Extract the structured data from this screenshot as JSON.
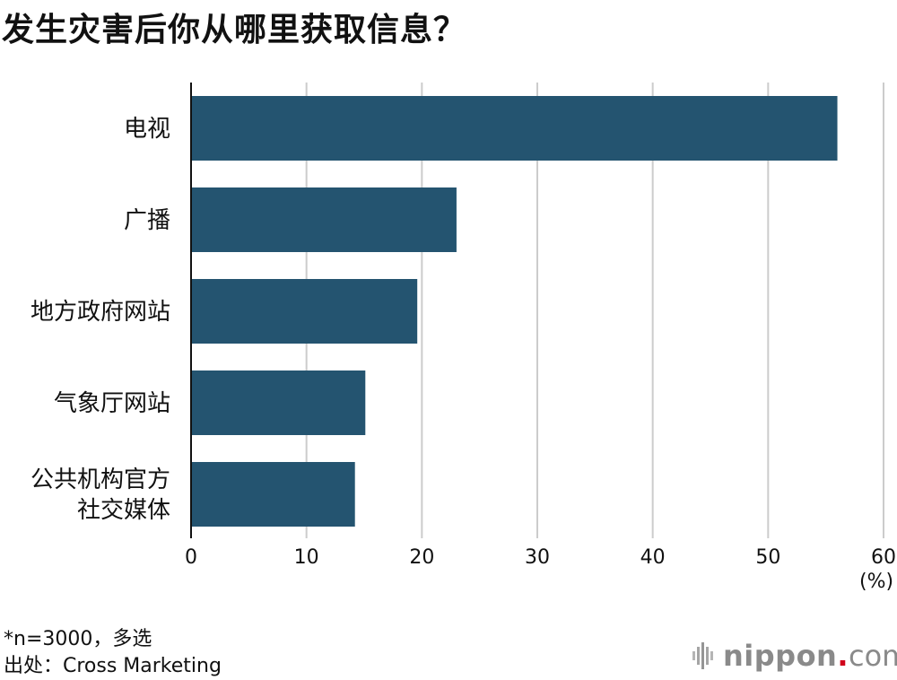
{
  "title": "发生灾害后你从哪里获取信息？",
  "unit": "(%)",
  "footnote": "*n=3000，多选",
  "source": "出处：Cross Marketing",
  "logo": {
    "name": "nippon",
    "dot": ".",
    "tld": "com"
  },
  "colors": {
    "bar": "#245470",
    "grid": "#cccccc",
    "axis": "#111111"
  },
  "chart_data": {
    "type": "bar",
    "orientation": "horizontal",
    "categories": [
      [
        "电视"
      ],
      [
        "广播"
      ],
      [
        "地方政府网站"
      ],
      [
        "气象厅网站"
      ],
      [
        "公共机构官方",
        "社交媒体"
      ]
    ],
    "values": [
      56,
      23,
      19.6,
      15.1,
      14.2
    ],
    "xlim": [
      0,
      60
    ],
    "xticks": [
      "0",
      "10",
      "20",
      "30",
      "40",
      "50",
      "60"
    ],
    "xlabel": "",
    "ylabel": "",
    "grid": true,
    "legend": "none"
  }
}
